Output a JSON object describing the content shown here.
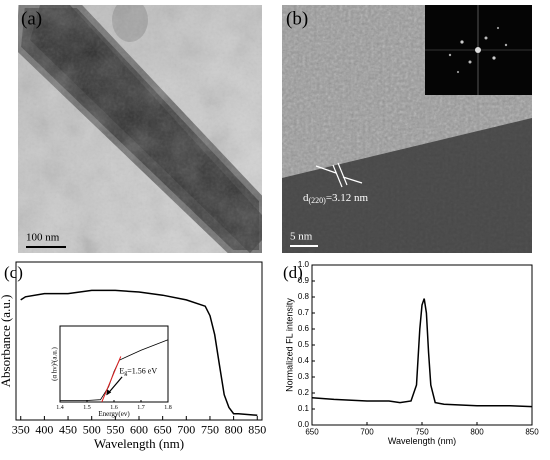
{
  "images": [
    {
      "panel_label": "(a)",
      "scale_bar": "100 nm"
    },
    {
      "panel_label": "(b)",
      "scale_bar": "5 nm",
      "annotation": {
        "text": "d",
        "subscript": "(220)",
        "rest": "=3.12 nm"
      }
    }
  ],
  "chart_data": [
    {
      "type": "line",
      "panel_label": "(c)",
      "x_label": "Wavelength (nm)",
      "y_label": "Absorbance (a.u.)",
      "x": [
        350,
        360,
        400,
        450,
        500,
        550,
        600,
        650,
        700,
        740,
        750,
        760,
        770,
        780,
        790,
        800,
        810,
        850
      ],
      "series": [
        {
          "color": "#000000",
          "values": [
            0.76,
            0.78,
            0.8,
            0.8,
            0.82,
            0.82,
            0.81,
            0.79,
            0.76,
            0.72,
            0.66,
            0.54,
            0.35,
            0.16,
            0.08,
            0.04,
            0.04,
            0.03
          ]
        }
      ],
      "xlim": [
        340,
        860
      ],
      "xticks": [
        350,
        400,
        450,
        500,
        550,
        600,
        650,
        700,
        750,
        800,
        850
      ],
      "ylim": [
        0,
        1
      ]
    },
    {
      "type": "line",
      "x_label": "Energy(ev)",
      "y_label": "(α hν)²(a.u.)",
      "x": [
        1.4,
        1.5,
        1.55,
        1.58,
        1.6,
        1.62,
        1.65,
        1.7,
        1.75,
        1.8
      ],
      "series": [
        {
          "color": "#000000",
          "values": [
            0.02,
            0.02,
            0.03,
            0.2,
            0.4,
            0.55,
            0.6,
            0.68,
            0.75,
            0.82
          ]
        }
      ],
      "fit": {
        "x": [
          1.555,
          1.625
        ],
        "values": [
          0,
          0.6
        ],
        "color": "#e02020"
      },
      "annotation": {
        "text": "E",
        "subscript": "g",
        "rest": "=1.56 eV"
      },
      "xlim": [
        1.4,
        1.8
      ],
      "xticks": [
        1.4,
        1.5,
        1.6,
        1.7,
        1.8
      ],
      "ylim": [
        0,
        1
      ]
    },
    {
      "type": "line",
      "panel_label": "(d)",
      "x_label": "Wavelength (nm)",
      "y_label": "Normalized FL intensity",
      "x": [
        650,
        670,
        700,
        720,
        730,
        740,
        745,
        748,
        750,
        752,
        754,
        756,
        758,
        762,
        770,
        800,
        830,
        850
      ],
      "series": [
        {
          "color": "#000000",
          "values": [
            0.17,
            0.16,
            0.15,
            0.15,
            0.14,
            0.15,
            0.25,
            0.6,
            0.75,
            0.79,
            0.7,
            0.45,
            0.25,
            0.14,
            0.13,
            0.12,
            0.12,
            0.115
          ]
        }
      ],
      "xlim": [
        650,
        850
      ],
      "xticks": [
        650,
        700,
        750,
        800,
        850
      ],
      "ylim": [
        0,
        1
      ],
      "yticks": [
        {
          "value": 0,
          "label": "0.0"
        },
        0.1,
        0.2,
        0.3,
        0.4,
        0.5,
        0.6,
        0.7,
        0.8,
        0.9,
        {
          "value": 1,
          "label": "1.0"
        }
      ]
    }
  ]
}
